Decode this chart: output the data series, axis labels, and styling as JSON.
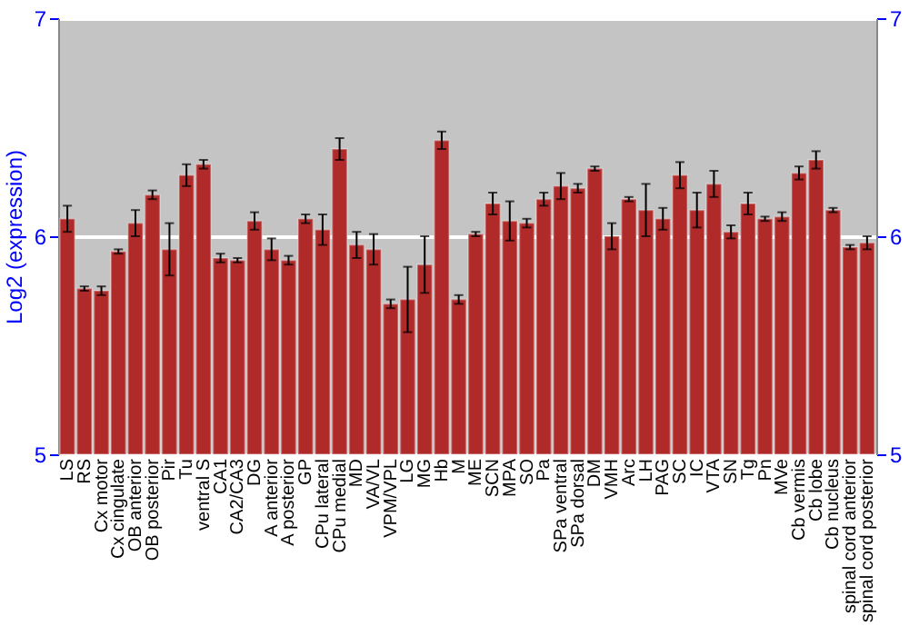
{
  "chart_data": {
    "type": "bar",
    "ylabel": "Log2 (expression)",
    "categories": [
      "LS",
      "RS",
      "Cx motor",
      "Cx cingulate",
      "OB anterior",
      "OB posterior",
      "Pir",
      "Tu",
      "ventral S",
      "CA1",
      "CA2/CA3",
      "DG",
      "A anterior",
      "A posterior",
      "GP",
      "CPu lateral",
      "CPu medial",
      "MD",
      "VA/VL",
      "VPM/VPL",
      "LG",
      "MG",
      "Hb",
      "M",
      "ME",
      "SCN",
      "MPA",
      "SO",
      "Pa",
      "SPa ventral",
      "SPa dorsal",
      "DM",
      "VMH",
      "Arc",
      "LH",
      "PAG",
      "SC",
      "IC",
      "VTA",
      "SN",
      "Tg",
      "Pn",
      "MVe",
      "Cb vermis",
      "Cb lobe",
      "Cb nucleus",
      "spinal cord anterior",
      "spinal cord posterior"
    ],
    "values": [
      6.08,
      5.76,
      5.75,
      5.93,
      6.06,
      6.19,
      5.94,
      6.28,
      6.33,
      5.9,
      5.89,
      6.07,
      5.94,
      5.89,
      6.08,
      6.03,
      6.4,
      5.96,
      5.94,
      5.69,
      5.71,
      5.87,
      6.44,
      5.71,
      6.01,
      6.15,
      6.07,
      6.06,
      6.17,
      6.23,
      6.22,
      6.31,
      6.0,
      6.17,
      6.12,
      6.08,
      6.28,
      6.12,
      6.24,
      6.02,
      6.15,
      6.08,
      6.09,
      6.29,
      6.35,
      6.12,
      5.95,
      5.97
    ],
    "errors": [
      0.06,
      0.01,
      0.02,
      0.01,
      0.06,
      0.02,
      0.12,
      0.05,
      0.02,
      0.02,
      0.01,
      0.04,
      0.05,
      0.02,
      0.02,
      0.07,
      0.05,
      0.06,
      0.07,
      0.02,
      0.15,
      0.13,
      0.04,
      0.02,
      0.01,
      0.05,
      0.09,
      0.02,
      0.03,
      0.06,
      0.02,
      0.01,
      0.06,
      0.01,
      0.12,
      0.05,
      0.06,
      0.08,
      0.06,
      0.03,
      0.05,
      0.01,
      0.02,
      0.03,
      0.04,
      0.01,
      0.01,
      0.03
    ],
    "color": "#b02a2a",
    "ylim": [
      5,
      7
    ],
    "yticks": [
      5,
      6,
      7
    ],
    "y2lim": [
      5,
      7
    ],
    "y2ticks": [
      5,
      6,
      7
    ],
    "grid": "y"
  }
}
